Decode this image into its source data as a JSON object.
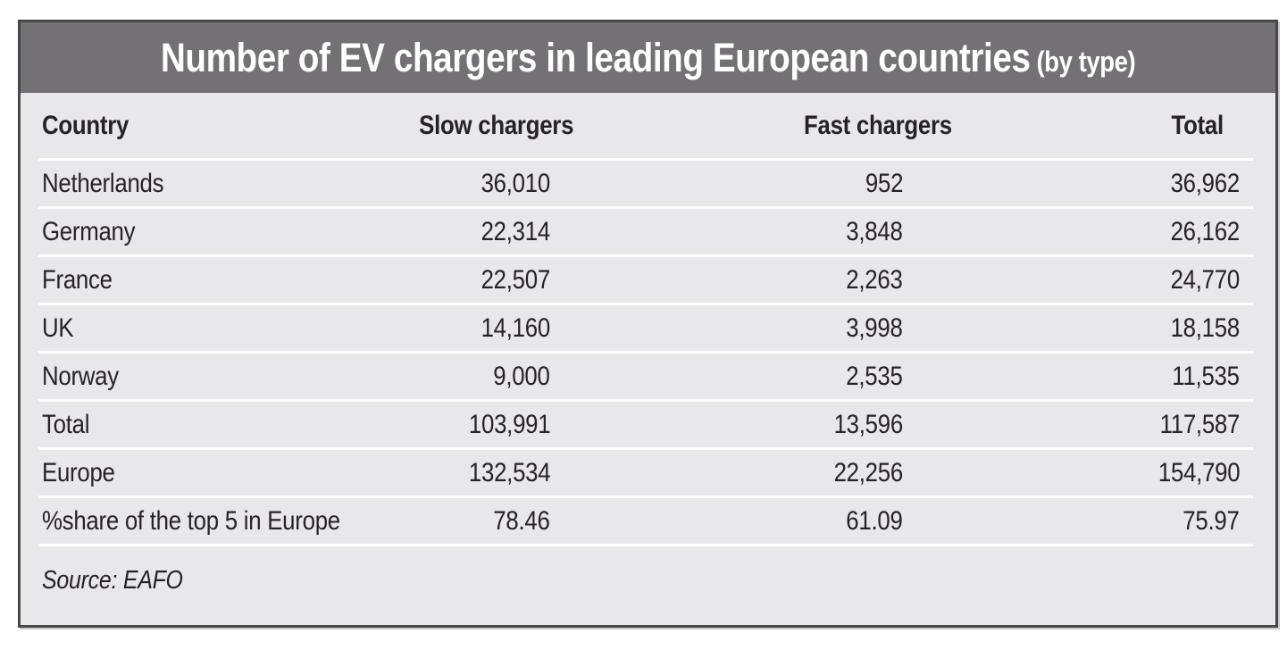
{
  "title": {
    "main": "Number of EV chargers in leading European countries",
    "suffix": "(by type)"
  },
  "table": {
    "columns": [
      "Country",
      "Slow chargers",
      "Fast chargers",
      "Total"
    ],
    "rows": [
      {
        "cells": [
          "Netherlands",
          "36,010",
          "952",
          "36,962"
        ]
      },
      {
        "cells": [
          "Germany",
          "22,314",
          "3,848",
          "26,162"
        ]
      },
      {
        "cells": [
          "France",
          "22,507",
          "2,263",
          "24,770"
        ]
      },
      {
        "cells": [
          "UK",
          "14,160",
          "3,998",
          "18,158"
        ]
      },
      {
        "cells": [
          "Norway",
          "9,000",
          "2,535",
          "11,535"
        ]
      },
      {
        "cells": [
          "Total",
          "103,991",
          "13,596",
          "117,587"
        ]
      },
      {
        "cells": [
          "Europe",
          "132,534",
          "22,256",
          "154,790"
        ]
      },
      {
        "cells": [
          "%share of the top 5 in Europe",
          "78.46",
          "61.09",
          "75.97"
        ]
      }
    ]
  },
  "source": "Source: EAFO",
  "colors": {
    "title_bg": "#737176",
    "title_text": "#ffffff",
    "body_bg": "#e8e7e9",
    "separator": "#ffffff",
    "border": "#48474b",
    "text": "#262227"
  },
  "chart_data": {
    "type": "table",
    "title": "Number of EV chargers in leading European countries (by type)",
    "columns": [
      "Country",
      "Slow chargers",
      "Fast chargers",
      "Total"
    ],
    "rows": [
      [
        "Netherlands",
        36010,
        952,
        36962
      ],
      [
        "Germany",
        22314,
        3848,
        26162
      ],
      [
        "France",
        22507,
        2263,
        24770
      ],
      [
        "UK",
        14160,
        3998,
        18158
      ],
      [
        "Norway",
        9000,
        2535,
        11535
      ],
      [
        "Total",
        103991,
        13596,
        117587
      ],
      [
        "Europe",
        132534,
        22256,
        154790
      ],
      [
        "%share of the top 5 in Europe",
        78.46,
        61.09,
        75.97
      ]
    ],
    "source": "EAFO"
  }
}
